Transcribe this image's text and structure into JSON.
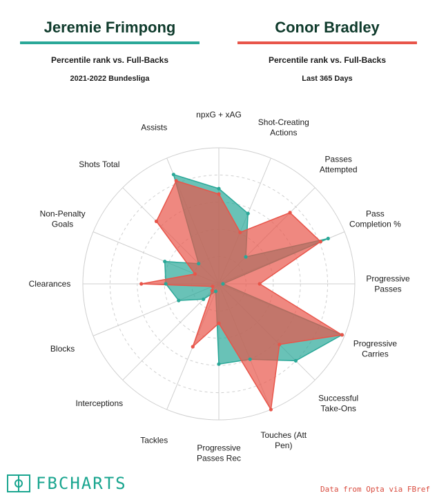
{
  "header": {
    "left": {
      "name": "Jeremie Frimpong",
      "subtitle": "Percentile rank vs. Full-Backs",
      "context": "2021-2022 Bundesliga",
      "color": "#2aa898"
    },
    "right": {
      "name": "Conor Bradley",
      "subtitle": "Percentile rank vs. Full-Backs",
      "context": "Last 365 Days",
      "color": "#e8554a"
    }
  },
  "footer": {
    "brand": "FBCHARTS",
    "source": "Data from Opta via FBref"
  },
  "chart_data": {
    "type": "radar",
    "rlim": [
      0,
      100
    ],
    "grid": true,
    "axes": [
      [
        "npxG + xAG"
      ],
      [
        "Shot-Creating",
        "Actions"
      ],
      [
        "Passes",
        "Attempted"
      ],
      [
        "Pass",
        "Completion %"
      ],
      [
        "Progressive",
        "Passes"
      ],
      [
        "Progressive",
        "Carries"
      ],
      [
        "Successful",
        "Take-Ons"
      ],
      [
        "Touches (Att",
        "Pen)"
      ],
      [
        "Progressive",
        "Passes Rec"
      ],
      [
        "Tackles"
      ],
      [
        "Interceptions"
      ],
      [
        "Blocks"
      ],
      [
        "Clearances"
      ],
      [
        "Non-Penalty",
        "Goals"
      ],
      [
        "Shots Total"
      ],
      [
        "Assists"
      ]
    ],
    "series": [
      {
        "name": "Jeremie Frimpong",
        "color": "#2aa898",
        "values": [
          70,
          56,
          28,
          87,
          3,
          98,
          80,
          60,
          59,
          6,
          16,
          32,
          39,
          43,
          21,
          87
        ]
      },
      {
        "name": "Conor Bradley",
        "color": "#e8554a",
        "values": [
          66,
          41,
          74,
          81,
          30,
          98,
          63,
          100,
          29,
          50,
          7,
          5,
          57,
          19,
          65,
          82
        ]
      }
    ]
  }
}
